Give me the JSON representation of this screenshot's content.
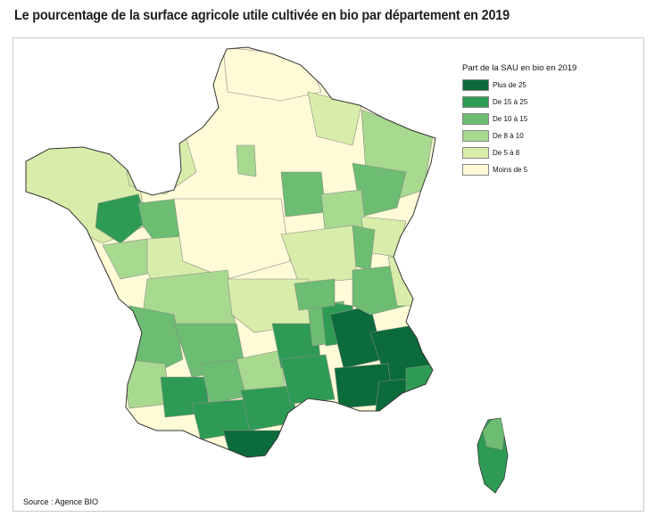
{
  "title": "Le pourcentage de la surface agricole utile cultivée en bio par département en 2019",
  "legend": {
    "title": "Part de la SAU en bio  en 2019",
    "classes": [
      {
        "label": "Plus de 25",
        "color": "#0b6b3a"
      },
      {
        "label": "De 15 à 25",
        "color": "#2e9b55"
      },
      {
        "label": "De 10 à 15",
        "color": "#6cbd71"
      },
      {
        "label": "De 8 à 10",
        "color": "#a7d98f"
      },
      {
        "label": "De 5 à 8",
        "color": "#d8eda9"
      },
      {
        "label": "Moins de 5",
        "color": "#fefbd6"
      }
    ]
  },
  "source": "Source : Agence BIO"
}
